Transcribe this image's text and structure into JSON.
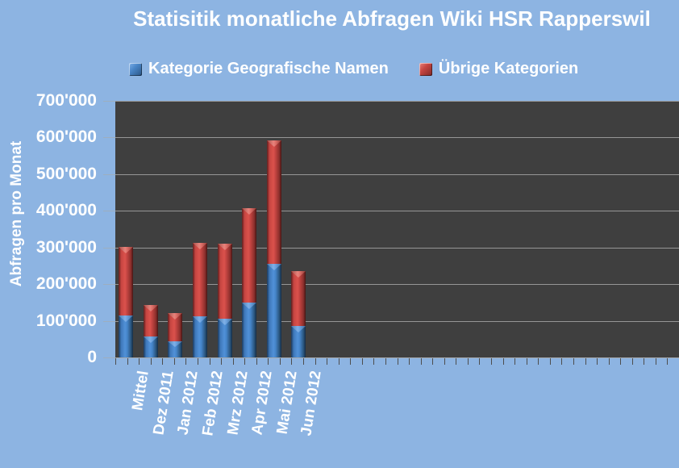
{
  "title": "Statisitik monatliche Abfragen Wiki HSR Rapperswil",
  "colors": {
    "background": "#8db4e2",
    "plot_background": "#3f3f3f",
    "gridline": "#a6a6a6",
    "text": "#ffffff",
    "series_blue": "#3f76b8",
    "series_red": "#c64541"
  },
  "legend": {
    "items": [
      {
        "label": "Kategorie Geografische Namen",
        "marker": "blue-square-marker-icon"
      },
      {
        "label": "Übrige Kategorien",
        "marker": "red-square-marker-icon"
      }
    ]
  },
  "chart_data": {
    "type": "bar",
    "subtype": "stacked-vertical",
    "title": "Statisitik monatliche Abfragen Wiki HSR Rapperswil",
    "xlabel": "",
    "ylabel": "Abfragen pro Monat",
    "ylim": [
      0,
      700000
    ],
    "ytick_step": 100000,
    "ytick_labels": [
      "0",
      "100'000",
      "200'000",
      "300'000",
      "400'000",
      "500'000",
      "600'000",
      "700'000"
    ],
    "grid": true,
    "legend_position": "top-center",
    "categories": [
      "Mittel",
      "Dez 2011",
      "Jan 2012",
      "Feb 2012",
      "Mrz 2012",
      "Apr 2012",
      "Mai 2012",
      "Jun 2012"
    ],
    "series": [
      {
        "name": "Kategorie Geografische Namen",
        "color": "#3f76b8",
        "values": [
          115000,
          57000,
          45000,
          112000,
          105000,
          150000,
          255000,
          86000
        ]
      },
      {
        "name": "Übrige Kategorien",
        "color": "#c64541",
        "values": [
          188000,
          86000,
          77000,
          200000,
          204000,
          257000,
          337000,
          149000
        ]
      }
    ],
    "stacked_totals": [
      303000,
      143000,
      122000,
      312000,
      309000,
      407000,
      592000,
      235000
    ]
  }
}
